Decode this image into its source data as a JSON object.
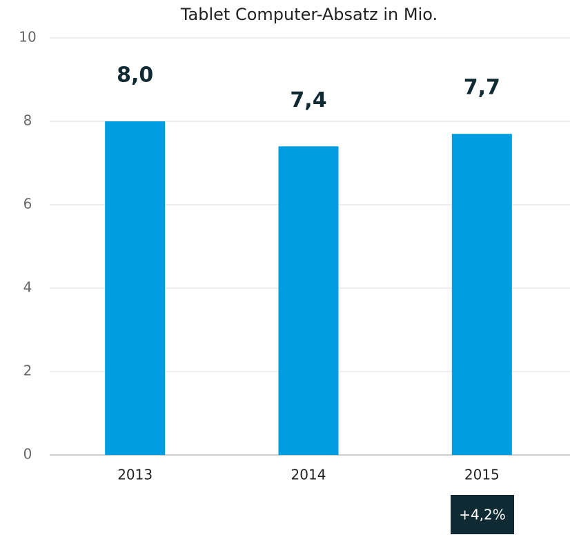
{
  "chart_data": {
    "type": "bar",
    "title": "Tablet Computer-Absatz in Mio.",
    "categories": [
      "2013",
      "2014",
      "2015"
    ],
    "values": [
      8.0,
      7.4,
      7.7
    ],
    "value_labels": [
      "8,0",
      "7,4",
      "7,7"
    ],
    "color": "#009ee0",
    "ylim": [
      0,
      10
    ],
    "yticks": [
      0,
      2,
      4,
      6,
      8,
      10
    ],
    "grid": true,
    "annotation": "+4,2%"
  }
}
